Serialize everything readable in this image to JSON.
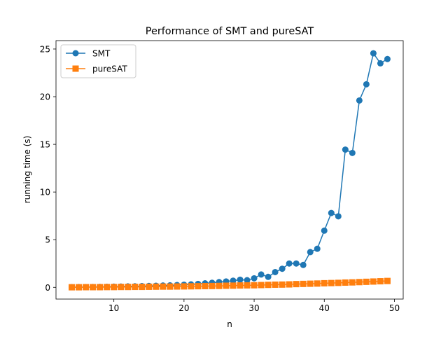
{
  "chart_data": {
    "type": "line",
    "title": "Performance of SMT and pureSAT",
    "xlabel": "n",
    "ylabel": "running time (s)",
    "xlim": [
      1.75,
      51.25
    ],
    "ylim": [
      -1.23,
      25.88
    ],
    "xticks": [
      10,
      20,
      30,
      40,
      50
    ],
    "yticks": [
      0,
      5,
      10,
      15,
      20,
      25
    ],
    "grid": false,
    "legend": "top-left",
    "x": [
      4,
      5,
      6,
      7,
      8,
      9,
      10,
      11,
      12,
      13,
      14,
      15,
      16,
      17,
      18,
      19,
      20,
      21,
      22,
      23,
      24,
      25,
      26,
      27,
      28,
      29,
      30,
      31,
      32,
      33,
      34,
      35,
      36,
      37,
      38,
      39,
      40,
      41,
      42,
      43,
      44,
      45,
      46,
      47,
      48,
      49
    ],
    "series": [
      {
        "name": "SMT",
        "color": "#1f77b4",
        "marker": "circle",
        "values": [
          0.02,
          0.03,
          0.03,
          0.04,
          0.05,
          0.06,
          0.07,
          0.08,
          0.1,
          0.11,
          0.13,
          0.15,
          0.17,
          0.19,
          0.21,
          0.24,
          0.28,
          0.31,
          0.36,
          0.42,
          0.48,
          0.55,
          0.62,
          0.7,
          0.8,
          0.75,
          0.95,
          1.35,
          1.1,
          1.6,
          1.95,
          2.5,
          2.5,
          2.35,
          3.7,
          4.05,
          5.95,
          7.8,
          7.45,
          14.45,
          14.1,
          19.6,
          21.3,
          24.55,
          23.5,
          23.95
        ]
      },
      {
        "name": "pureSAT",
        "color": "#ff7f0e",
        "marker": "square",
        "values": [
          0.01,
          0.01,
          0.02,
          0.02,
          0.02,
          0.03,
          0.03,
          0.04,
          0.04,
          0.05,
          0.05,
          0.06,
          0.07,
          0.08,
          0.08,
          0.09,
          0.1,
          0.11,
          0.12,
          0.13,
          0.14,
          0.15,
          0.17,
          0.18,
          0.2,
          0.21,
          0.22,
          0.24,
          0.26,
          0.28,
          0.29,
          0.31,
          0.34,
          0.36,
          0.38,
          0.4,
          0.43,
          0.45,
          0.47,
          0.5,
          0.52,
          0.55,
          0.58,
          0.61,
          0.64,
          0.67
        ]
      }
    ]
  }
}
